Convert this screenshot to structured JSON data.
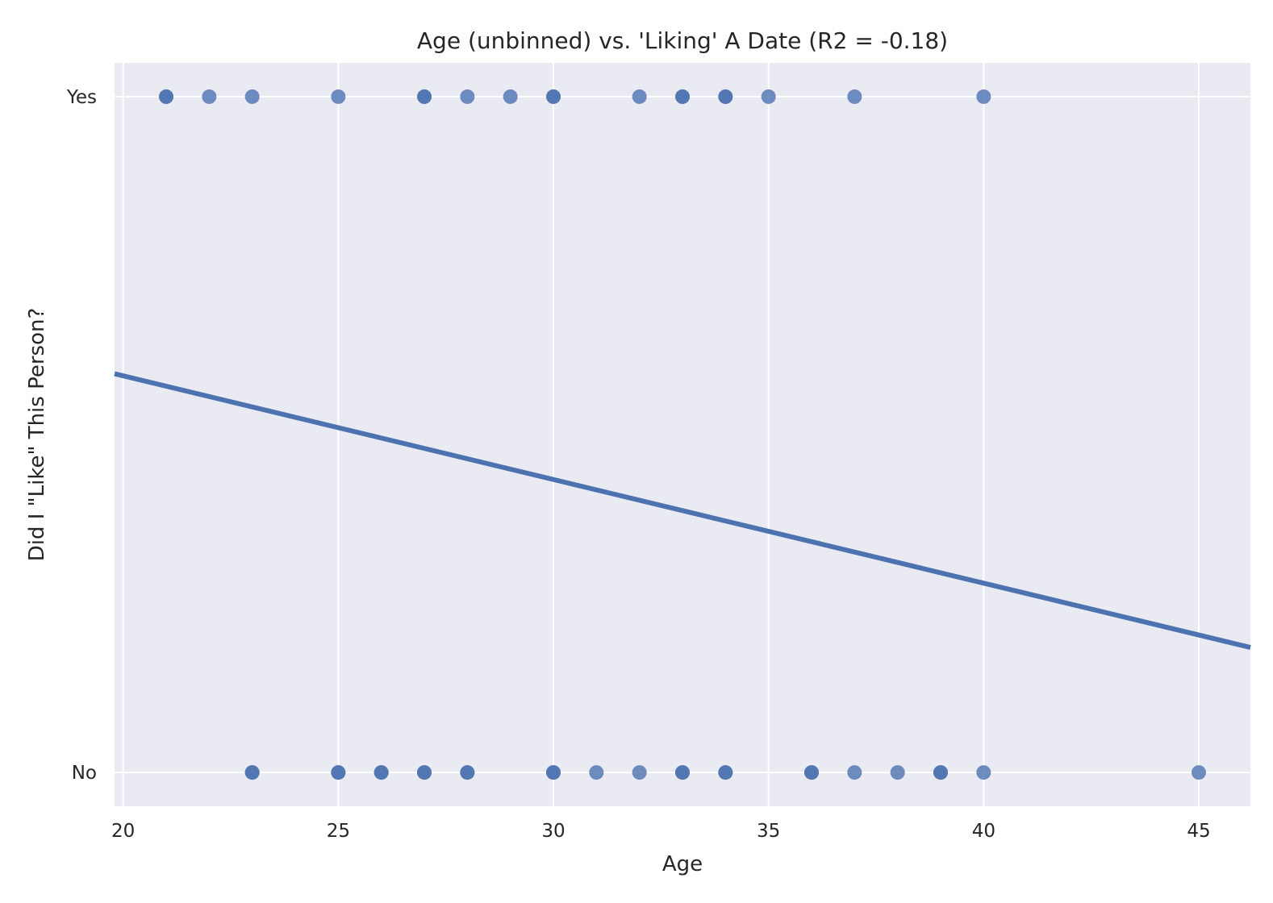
{
  "chart_data": {
    "type": "scatter",
    "title": "Age (unbinned) vs. 'Liking' A Date (R2 = -0.18)",
    "xlabel": "Age",
    "ylabel": "Did I \"Like\" This Person?",
    "xlim": [
      19.8,
      46.2
    ],
    "ylim": [
      -0.05,
      1.05
    ],
    "x_ticks": [
      20,
      25,
      30,
      35,
      40,
      45
    ],
    "x_tick_labels": [
      "20",
      "25",
      "30",
      "35",
      "40",
      "45"
    ],
    "y_ticks": [
      0,
      1
    ],
    "y_tick_labels": [
      "No",
      "Yes"
    ],
    "grid": true,
    "legend": "none",
    "colors": {
      "background": "#eaeaf2",
      "grid": "#ffffff",
      "points": "#4c72b0",
      "line": "#4c72b0"
    },
    "points": [
      {
        "x": 21,
        "y": 1
      },
      {
        "x": 21,
        "y": 1
      },
      {
        "x": 22,
        "y": 1
      },
      {
        "x": 23,
        "y": 1
      },
      {
        "x": 25,
        "y": 1
      },
      {
        "x": 27,
        "y": 1
      },
      {
        "x": 27,
        "y": 1
      },
      {
        "x": 28,
        "y": 1
      },
      {
        "x": 29,
        "y": 1
      },
      {
        "x": 30,
        "y": 1
      },
      {
        "x": 30,
        "y": 1
      },
      {
        "x": 32,
        "y": 1
      },
      {
        "x": 33,
        "y": 1
      },
      {
        "x": 33,
        "y": 1
      },
      {
        "x": 34,
        "y": 1
      },
      {
        "x": 34,
        "y": 1
      },
      {
        "x": 35,
        "y": 1
      },
      {
        "x": 37,
        "y": 1
      },
      {
        "x": 40,
        "y": 1
      },
      {
        "x": 23,
        "y": 0
      },
      {
        "x": 23,
        "y": 0
      },
      {
        "x": 25,
        "y": 0
      },
      {
        "x": 25,
        "y": 0
      },
      {
        "x": 26,
        "y": 0
      },
      {
        "x": 26,
        "y": 0
      },
      {
        "x": 27,
        "y": 0
      },
      {
        "x": 27,
        "y": 0
      },
      {
        "x": 28,
        "y": 0
      },
      {
        "x": 28,
        "y": 0
      },
      {
        "x": 30,
        "y": 0
      },
      {
        "x": 30,
        "y": 0
      },
      {
        "x": 31,
        "y": 0
      },
      {
        "x": 32,
        "y": 0
      },
      {
        "x": 33,
        "y": 0
      },
      {
        "x": 33,
        "y": 0
      },
      {
        "x": 34,
        "y": 0
      },
      {
        "x": 34,
        "y": 0
      },
      {
        "x": 36,
        "y": 0
      },
      {
        "x": 36,
        "y": 0
      },
      {
        "x": 37,
        "y": 0
      },
      {
        "x": 38,
        "y": 0
      },
      {
        "x": 39,
        "y": 0
      },
      {
        "x": 39,
        "y": 0
      },
      {
        "x": 40,
        "y": 0
      },
      {
        "x": 45,
        "y": 0
      }
    ],
    "regression_line": {
      "x": [
        19.8,
        46.2
      ],
      "y": [
        0.59,
        0.185
      ]
    }
  }
}
